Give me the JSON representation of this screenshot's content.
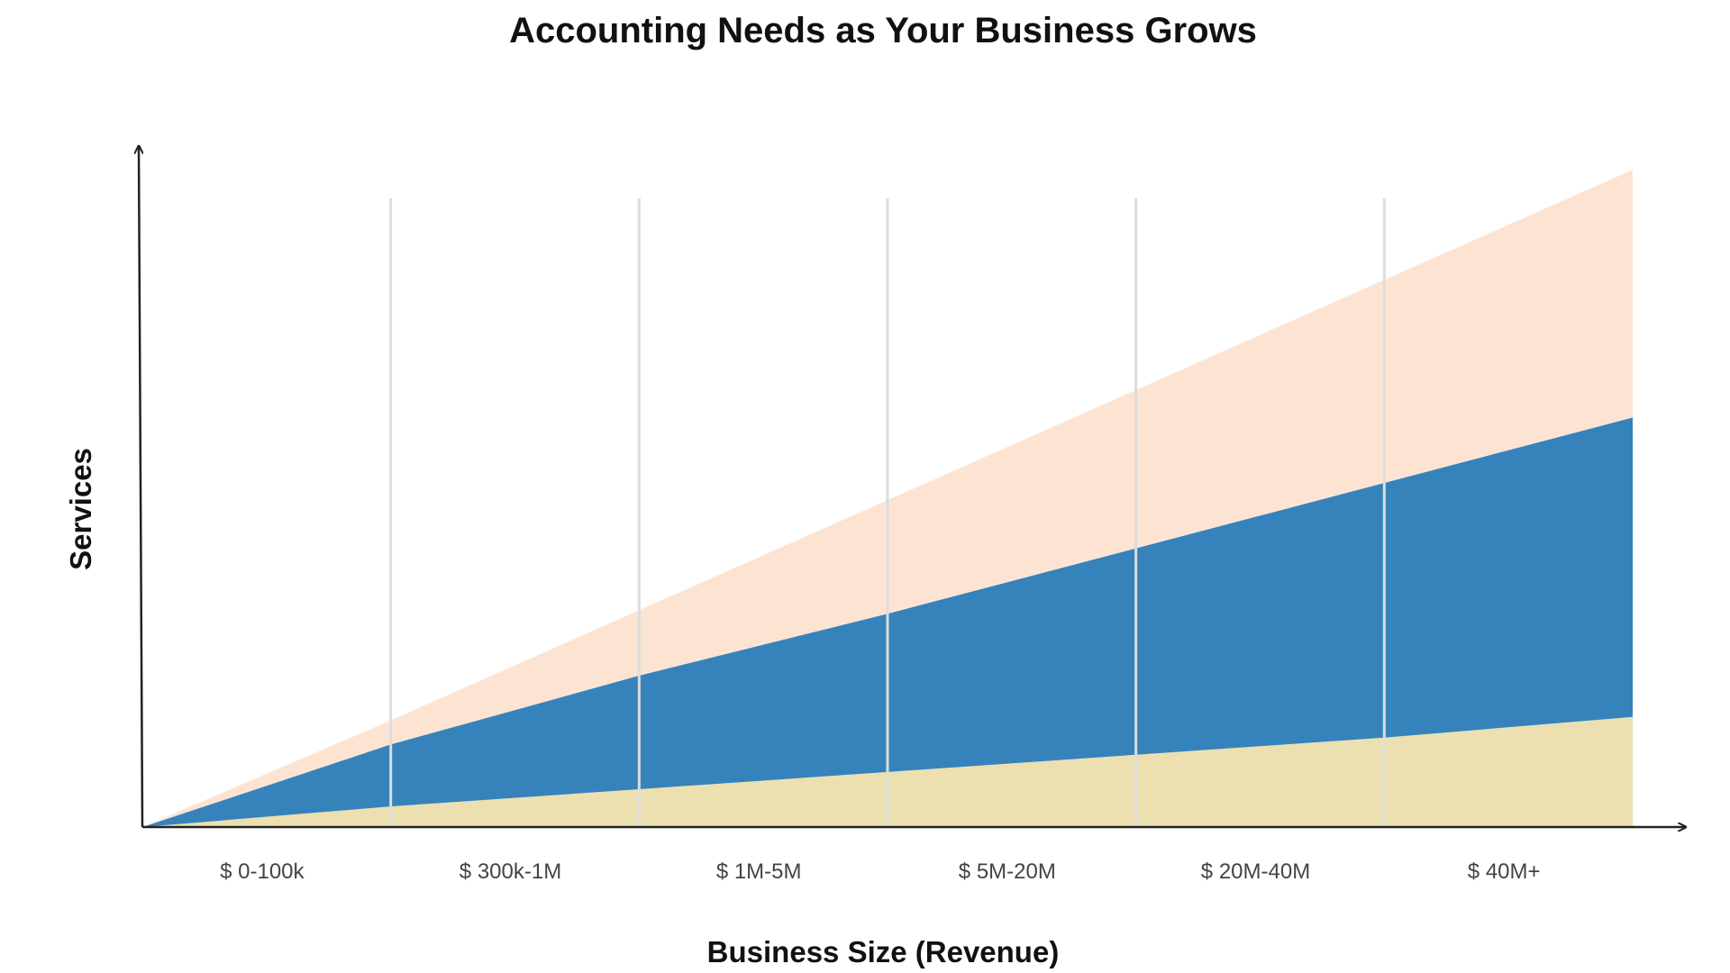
{
  "chart_data": {
    "type": "area",
    "title": "Accounting Needs as Your Business Grows",
    "xlabel": "Business Size (Revenue)",
    "ylabel": "Services",
    "categories": [
      "$ 0-100k",
      "$ 300k-1M",
      "$ 1M-5M",
      "$ 5M-20M",
      "$ 20M-40M",
      "$ 40M+"
    ],
    "x": [
      0,
      1,
      2,
      3,
      4,
      5,
      6
    ],
    "stacked": true,
    "ylim": [
      0,
      100
    ],
    "series": [
      {
        "values": [
          0,
          3,
          5.5,
          8,
          10.5,
          13,
          16
        ],
        "color": "#ece0b0"
      },
      {
        "values": [
          0,
          9,
          16.5,
          23,
          30,
          37,
          43.5
        ],
        "color": "#3683bc"
      },
      {
        "values": [
          0,
          3.5,
          9.5,
          16.5,
          23,
          29.5,
          36
        ],
        "color": "#fde4d2"
      }
    ],
    "grid": "vertical",
    "gridline_color": "#dddddd",
    "axis_color": "#222222",
    "legend": "none"
  }
}
